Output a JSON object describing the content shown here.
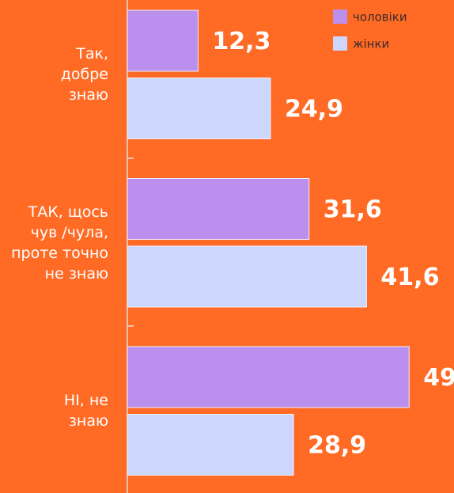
{
  "chart_data": {
    "type": "hbar",
    "categories": [
      "Так,\nдобре\nзнаю",
      "ТАК, щось\nчув /чула,\nпроте точно\nне знаю",
      "НІ, не\nзнаю"
    ],
    "series": [
      {
        "name": "чоловіки",
        "color": "#bb8fee",
        "values": [
          12.3,
          31.6,
          49
        ],
        "value_labels": [
          "12,3",
          "31,6",
          "49"
        ]
      },
      {
        "name": "жінки",
        "color": "#cdd7fe",
        "values": [
          24.9,
          41.6,
          28.9
        ],
        "value_labels": [
          "24,9",
          "41,6",
          "28,9"
        ]
      }
    ]
  }
}
